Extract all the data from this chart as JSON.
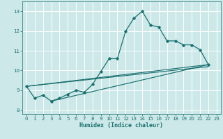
{
  "title": "",
  "xlabel": "Humidex (Indice chaleur)",
  "xlim": [
    -0.5,
    23.5
  ],
  "ylim": [
    7.8,
    13.5
  ],
  "yticks": [
    8,
    9,
    10,
    11,
    12,
    13
  ],
  "xticks": [
    0,
    1,
    2,
    3,
    4,
    5,
    6,
    7,
    8,
    9,
    10,
    11,
    12,
    13,
    14,
    15,
    16,
    17,
    18,
    19,
    20,
    21,
    22,
    23
  ],
  "background_color": "#cce8e8",
  "line_color": "#1a7070",
  "grid_color": "#ffffff",
  "series_main": {
    "x": [
      0,
      1,
      2,
      3,
      4,
      5,
      6,
      7,
      8,
      9,
      10,
      11,
      12,
      13,
      14,
      15,
      16,
      17,
      18,
      19,
      20,
      21,
      22
    ],
    "y": [
      9.2,
      8.6,
      8.75,
      8.45,
      8.6,
      8.8,
      9.0,
      8.9,
      9.3,
      9.95,
      10.6,
      10.6,
      12.0,
      12.65,
      13.0,
      12.3,
      12.2,
      11.5,
      11.5,
      11.3,
      11.3,
      11.05,
      10.3
    ]
  },
  "series_line1": {
    "x": [
      0,
      22
    ],
    "y": [
      9.2,
      10.3
    ]
  },
  "series_line2": {
    "x": [
      0,
      22
    ],
    "y": [
      9.2,
      10.2
    ]
  },
  "series_line3": {
    "x": [
      3,
      22
    ],
    "y": [
      8.45,
      10.3
    ]
  }
}
